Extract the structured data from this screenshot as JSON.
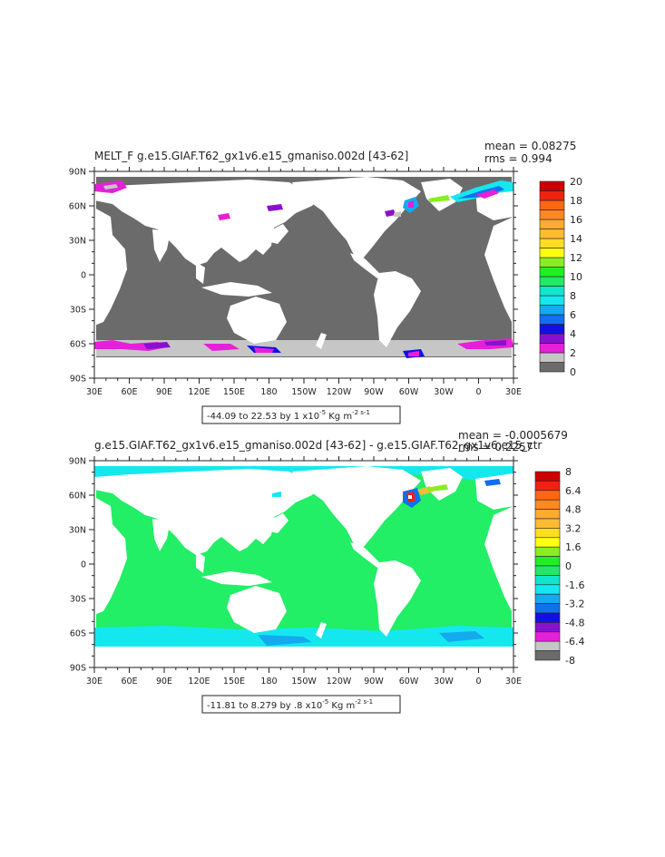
{
  "panels": [
    {
      "title": "MELT_F  g.e15.GIAF.T62_gx1v6.e15_gmaniso.002d  [43-62]",
      "stat_mean": "mean = 0.08275",
      "stat_rms": "rms = 0.994",
      "range": "-44.09 to 22.53 by 1 x10",
      "range_exp": "-5",
      "range_units": " Kg m",
      "range_units_exp": "-2 s-1",
      "lon_ticks": [
        "30E",
        "60E",
        "90E",
        "120E",
        "150E",
        "180",
        "150W",
        "120W",
        "90W",
        "60W",
        "30W",
        "0",
        "30E"
      ],
      "lat_ticks": [
        "90N",
        "60N",
        "30N",
        "0",
        "30S",
        "60S",
        "90S"
      ],
      "colorbar": {
        "labels": [
          "0",
          "2",
          "4",
          "6",
          "8",
          "10",
          "12",
          "14",
          "16",
          "18",
          "20"
        ],
        "colors": [
          "#6b6b6b",
          "#c6c6c6",
          "#e620d8",
          "#8a10d0",
          "#1010e6",
          "#1070ee",
          "#14aaee",
          "#14e8ee",
          "#11e6cc",
          "#22e866",
          "#22ee22",
          "#88ee22",
          "#ffff11",
          "#ffdd22",
          "#ffbb33",
          "#ffaa33",
          "#ff8822",
          "#ff6611",
          "#ee2211",
          "#cc0000"
        ]
      }
    },
    {
      "title": "g.e15.GIAF.T62_gx1v6.e15_gmaniso.002d  [43-62]  -  g.e15.GIAF.T62_gx1v6.e15_ctr",
      "stat_mean": "mean = -0.0005679",
      "stat_rms": "rms = 0.2257",
      "range": "-11.81 to 8.279 by .8 x10",
      "range_exp": "-5",
      "range_units": " Kg m",
      "range_units_exp": "-2 s-1",
      "lon_ticks": [
        "30E",
        "60E",
        "90E",
        "120E",
        "150E",
        "180",
        "150W",
        "120W",
        "90W",
        "60W",
        "30W",
        "0",
        "30E"
      ],
      "lat_ticks": [
        "90N",
        "60N",
        "30N",
        "0",
        "30S",
        "60S",
        "90S"
      ],
      "colorbar": {
        "labels": [
          "8",
          "6.4",
          "4.8",
          "3.2",
          "1.6",
          "0",
          "-1.6",
          "-3.2",
          "-4.8",
          "-6.4",
          "-8"
        ],
        "colors": [
          "#cc0000",
          "#ee2211",
          "#ff6611",
          "#ff8822",
          "#ffaa33",
          "#ffbb33",
          "#ffdd22",
          "#ffff11",
          "#88ee22",
          "#22ee22",
          "#22e866",
          "#11e6cc",
          "#14e8ee",
          "#14aaee",
          "#1070ee",
          "#1010e6",
          "#8a10d0",
          "#e620d8",
          "#c6c6c6",
          "#6b6b6b"
        ]
      }
    }
  ],
  "colors": {
    "ocean_gray": "#6b6b6b",
    "ocean_green": "#22ee66",
    "land": "#ffffff"
  }
}
